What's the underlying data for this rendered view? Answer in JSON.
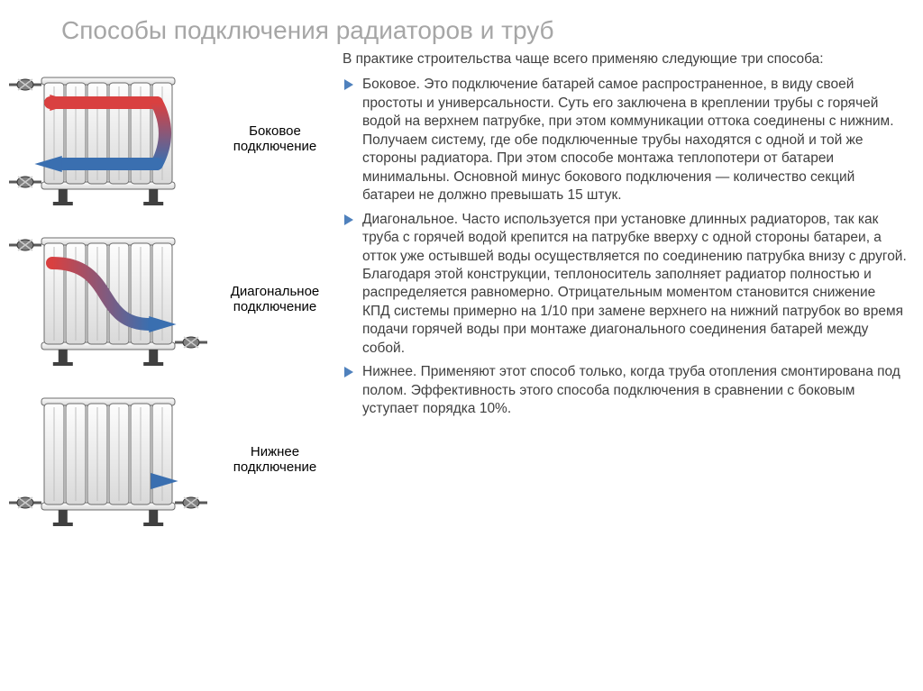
{
  "title": "Способы подключения радиаторов и труб",
  "intro": "В практике строительства чаще всего применяю следующие три способа:",
  "items": [
    {
      "text": "Боковое. Это подключение батарей самое распространенное, в виду своей простоты и универсальности. Суть его заключена в креплении трубы с горячей водой на верхнем патрубке, при этом коммуникации оттока соединены с нижним. Получаем систему, где обе подключенные трубы находятся с одной и той же стороны радиатора. При этом способе монтажа теплопотери от батареи минимальны. Основной минус бокового подключения — количество секций батареи не должно превышать 15 штук."
    },
    {
      "text": "Диагональное. Часто используется при установке длинных радиаторов, так как труба с горячей водой крепится на патрубке вверху с одной стороны батареи, а отток уже остывшей воды осуществляется по соединению патрубка внизу с другой. Благодаря этой конструкции, теплоноситель заполняет радиатор полностью и распределяется равномерно. Отрицательным моментом становится снижение КПД системы примерно на 1/10 при замене верхнего на нижний патрубок во время подачи горячей воды при монтаже диагонального соединения батарей между собой."
    },
    {
      "text": "Нижнее. Применяют этот способ только, когда труба отопления смонтирована под полом. Эффективность этого способа подключения в сравнении с боковым уступает порядка 10%."
    }
  ],
  "diagrams": [
    {
      "label_l1": "Боковое",
      "label_l2": "подключение",
      "arrow": "side"
    },
    {
      "label_l1": "Диагональное",
      "label_l2": "подключение",
      "arrow": "diag"
    },
    {
      "label_l1": "Нижнее",
      "label_l2": "подключение",
      "arrow": "bottom"
    }
  ],
  "style": {
    "bullet_color": "#4f81bd",
    "title_color": "#a6a6a6",
    "text_color": "#3f3f3f",
    "radiator": {
      "width": 175,
      "height": 135,
      "sections": 6,
      "body_fill_top": "#fdfdfd",
      "body_fill_bot": "#d9d9d9",
      "stroke": "#6b6b6b",
      "pipe_color": "#595959",
      "valve_color": "#808080",
      "foot_color": "#404040",
      "arrow_red": "#d94040",
      "arrow_blue": "#3a6fb0",
      "arrow_width": 14
    }
  }
}
